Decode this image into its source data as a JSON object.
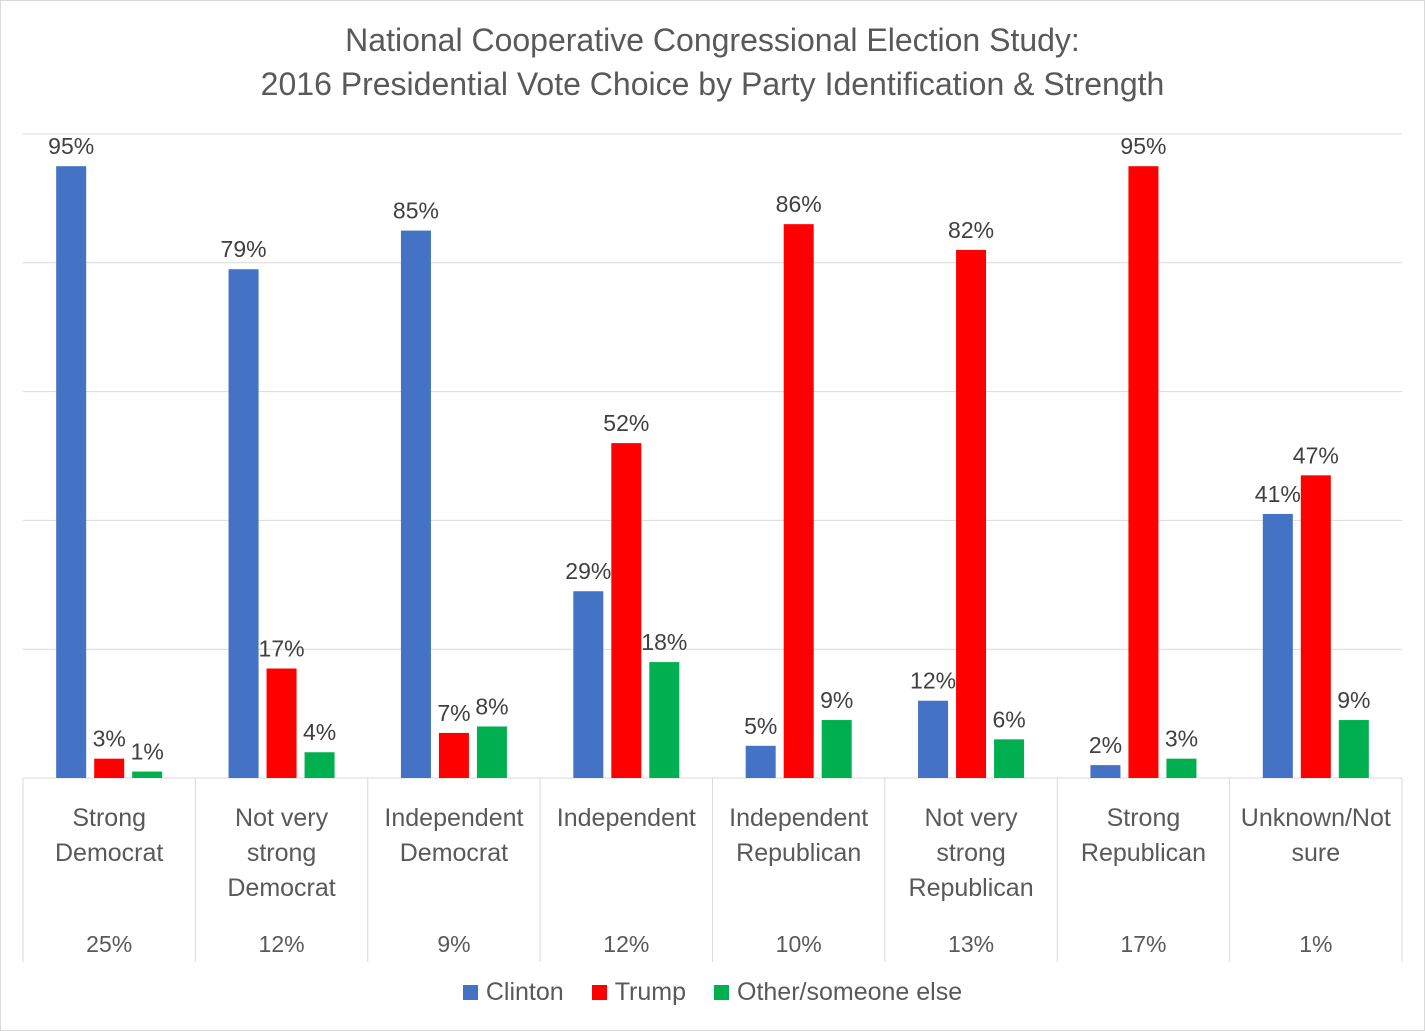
{
  "chart_data": {
    "type": "bar",
    "title": "National Cooperative Congressional Election Study:",
    "subtitle": "2016 Presidential Vote Choice by Party Identification & Strength",
    "categories": [
      [
        "Strong",
        "Democrat"
      ],
      [
        "Not very",
        "strong",
        "Democrat"
      ],
      [
        "Independent",
        "Democrat"
      ],
      [
        "Independent"
      ],
      [
        "Independent",
        "Republican"
      ],
      [
        "Not very",
        "strong",
        "Republican"
      ],
      [
        "Strong",
        "Republican"
      ],
      [
        "Unknown/Not",
        "sure"
      ]
    ],
    "category_shares": [
      "25%",
      "12%",
      "9%",
      "12%",
      "10%",
      "13%",
      "17%",
      "1%"
    ],
    "series": [
      {
        "name": "Clinton",
        "color": "#4472c4",
        "values": [
          95,
          79,
          85,
          29,
          5,
          12,
          2,
          41
        ]
      },
      {
        "name": "Trump",
        "color": "#ff0000",
        "values": [
          3,
          17,
          7,
          52,
          86,
          82,
          95,
          47
        ]
      },
      {
        "name": "Other/someone else",
        "color": "#00b050",
        "values": [
          1,
          4,
          8,
          18,
          9,
          6,
          3,
          9
        ]
      }
    ],
    "value_suffix": "%",
    "ylim": [
      0,
      100
    ],
    "ytick_step": 20,
    "grid": true,
    "y_axis_labels": false,
    "legend_position": "bottom"
  }
}
